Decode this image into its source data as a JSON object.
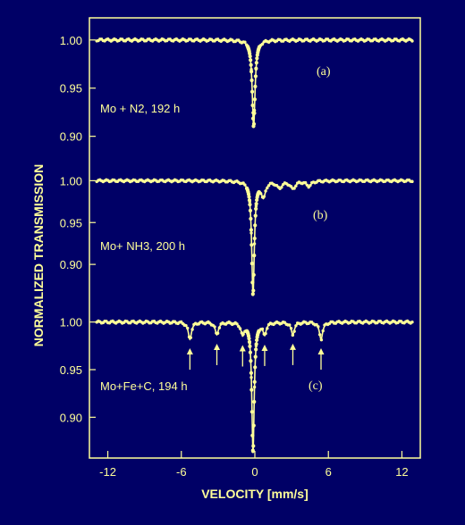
{
  "chart_data": {
    "type": "line",
    "xlabel": "VELOCITY  [mm/s]",
    "ylabel": "NORMALIZED TRANSMISSION",
    "xlim": [
      -13.5,
      13.5
    ],
    "x_ticks": [
      -12,
      -6,
      0,
      6,
      12
    ],
    "y_ticks": [
      1.0,
      0.95,
      0.9
    ],
    "colors": {
      "background": "#000066",
      "ink": "#ffff99"
    },
    "grid": false,
    "panels": [
      {
        "tag": "(a)",
        "label": "Mo + N2, 192 h",
        "ylim": [
          0.87,
          1.01
        ],
        "baseline": 1.0,
        "lines": [
          {
            "position": -0.1,
            "depth": 0.09,
            "width": 0.28
          }
        ],
        "arrows": []
      },
      {
        "tag": "(b)",
        "label": "Mo+ NH3, 200 h",
        "ylim": [
          0.85,
          1.01
        ],
        "baseline": 1.0,
        "lines": [
          {
            "position": -0.15,
            "depth": 0.135,
            "width": 0.26
          },
          {
            "position": 0.7,
            "depth": 0.018,
            "width": 0.4
          },
          {
            "position": 2.0,
            "depth": 0.008,
            "width": 0.5
          },
          {
            "position": 3.1,
            "depth": 0.009,
            "width": 0.5
          },
          {
            "position": 4.4,
            "depth": 0.006,
            "width": 0.5
          }
        ],
        "arrows": []
      },
      {
        "tag": "(c)",
        "label": "Mo+Fe+C, 194 h",
        "ylim": [
          0.86,
          1.01
        ],
        "baseline": 1.0,
        "lines": [
          {
            "position": -0.15,
            "depth": 0.135,
            "width": 0.24
          },
          {
            "position": -5.3,
            "depth": 0.018,
            "width": 0.32
          },
          {
            "position": -3.1,
            "depth": 0.013,
            "width": 0.32
          },
          {
            "position": -1.0,
            "depth": 0.012,
            "width": 0.3
          },
          {
            "position": 0.8,
            "depth": 0.012,
            "width": 0.3
          },
          {
            "position": 3.1,
            "depth": 0.013,
            "width": 0.32
          },
          {
            "position": 5.4,
            "depth": 0.018,
            "width": 0.32
          }
        ],
        "arrows": [
          -5.3,
          -3.1,
          -1.0,
          0.8,
          3.1,
          5.4
        ]
      }
    ]
  }
}
